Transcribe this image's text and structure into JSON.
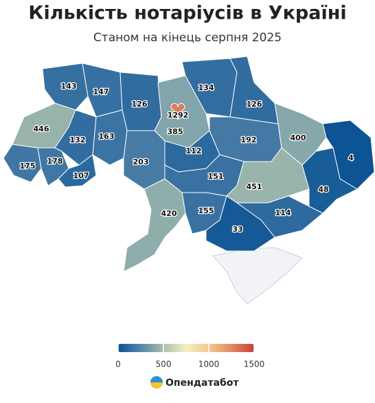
{
  "chart_data": {
    "type": "map",
    "title": "Кількість нотаріусів в Україні",
    "subtitle": "Станом на кінець серпня 2025",
    "values": [
      143,
      147,
      126,
      1292,
      385,
      134,
      126,
      446,
      132,
      163,
      203,
      112,
      192,
      400,
      4,
      175,
      178,
      107,
      151,
      451,
      48,
      420,
      155,
      114,
      33
    ],
    "clim": [
      0,
      1500
    ],
    "cticks": [
      0,
      500,
      1000,
      1500
    ],
    "colorscale": [
      "#0b5394",
      "#5585ab",
      "#a9c0ab",
      "#f4eebf",
      "#f2c98e",
      "#e08a62",
      "#c8413b"
    ]
  },
  "brand": "Опендатабот"
}
